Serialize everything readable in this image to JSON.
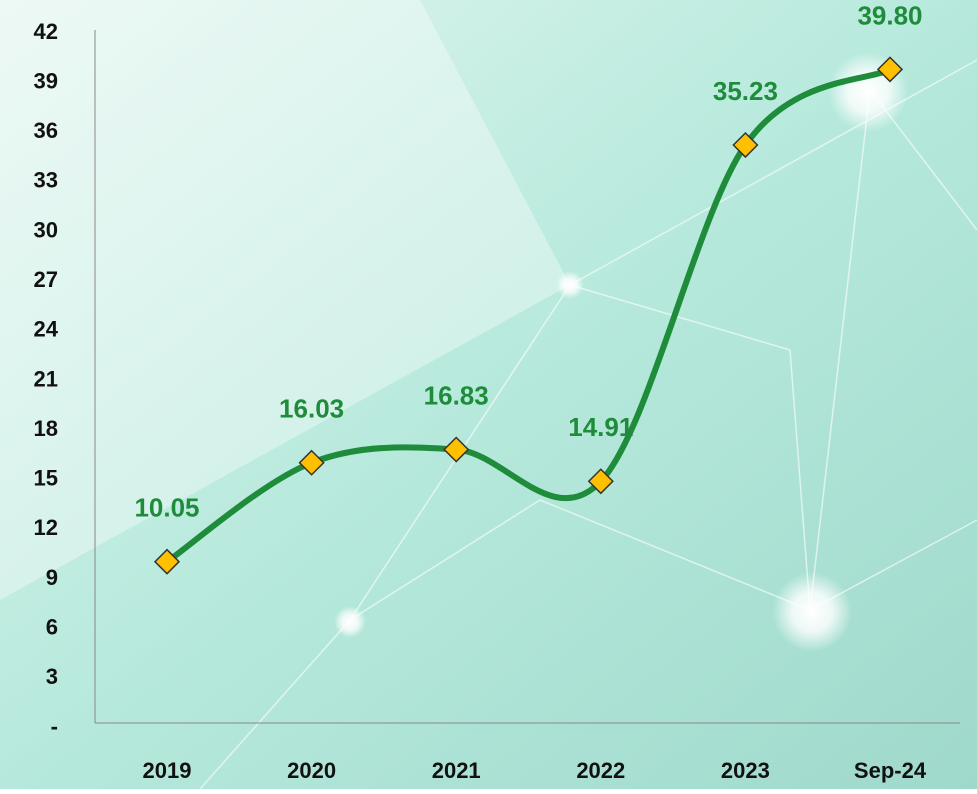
{
  "chart_data": {
    "type": "line",
    "categories": [
      "2019",
      "2020",
      "2021",
      "2022",
      "2023",
      "Sep-24"
    ],
    "values": [
      10.05,
      16.03,
      16.83,
      14.91,
      35.23,
      39.8
    ],
    "value_labels": [
      "10.05",
      "16.03",
      "16.83",
      "14.91",
      "35.23",
      "39.80"
    ],
    "color": "#1e8c3a",
    "marker_color": "#ffc000",
    "smooth": true,
    "ylim": [
      0,
      42
    ],
    "yticks": [
      {
        "value": 0,
        "label": "-"
      },
      3,
      6,
      9,
      12,
      15,
      18,
      21,
      24,
      27,
      30,
      33,
      36,
      39,
      42
    ]
  }
}
